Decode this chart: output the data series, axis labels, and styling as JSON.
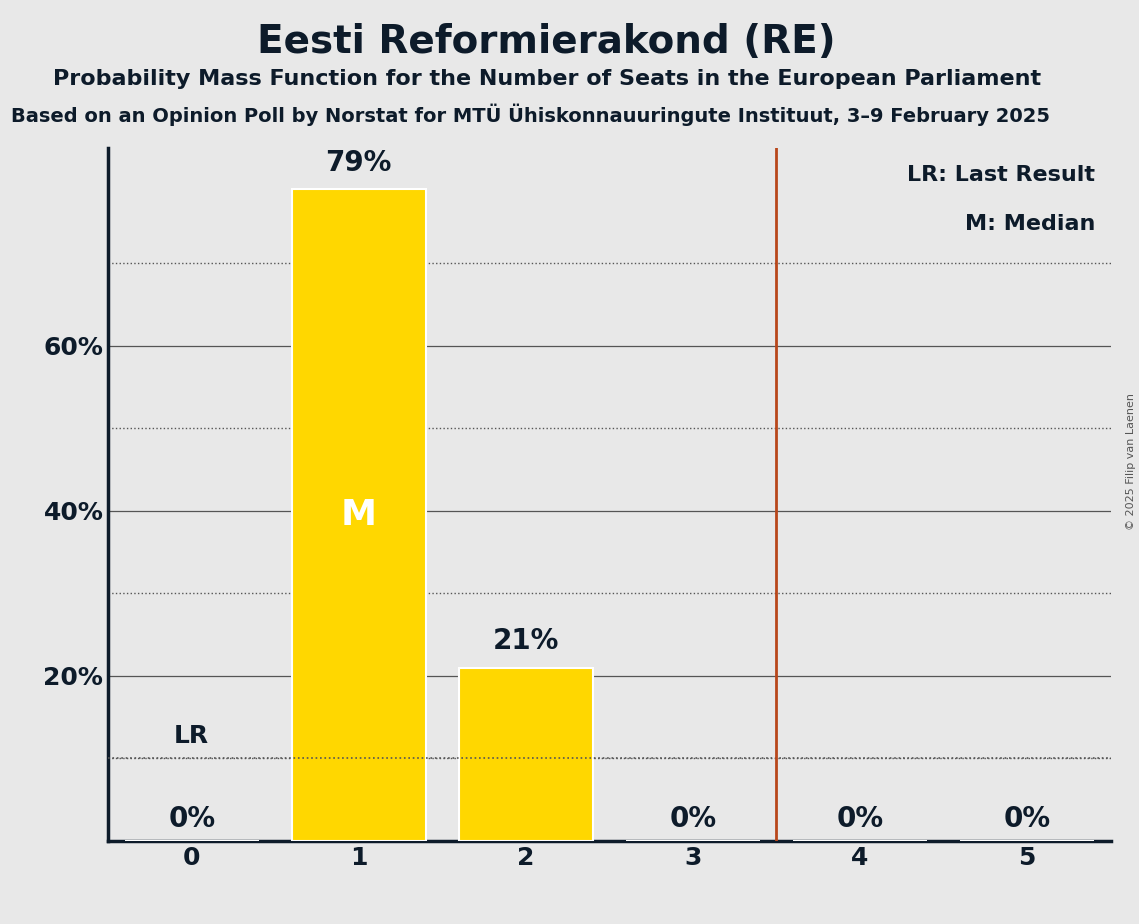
{
  "title": "Eesti Reformierakond (RE)",
  "subtitle": "Probability Mass Function for the Number of Seats in the European Parliament",
  "sub_subtitle": "Based on an Opinion Poll by Norstat for MTÜ Ühistkonnauuringute Instituut, 3–9 February 2025",
  "sub_subtitle_display": "Based on an Opinion Poll by Norstat for MTÜ Ühiskonnauuringute Instituut, 3–9 February 2025",
  "copyright": "© 2025 Filip van Laenen",
  "categories": [
    0,
    1,
    2,
    3,
    4,
    5
  ],
  "values": [
    0.0,
    0.79,
    0.21,
    0.0,
    0.0,
    0.0
  ],
  "bar_color": "#FFD700",
  "bar_edge_color": "white",
  "median": 1,
  "last_result": 3.5,
  "last_result_color": "#B8471B",
  "background_color": "#E8E8E8",
  "yticks_major": [
    0.2,
    0.4,
    0.6
  ],
  "yticks_minor": [
    0.1,
    0.3,
    0.5,
    0.7
  ],
  "ylabel_ticks": [
    0.2,
    0.4,
    0.6
  ],
  "ylabel_labels": [
    "20%",
    "40%",
    "60%"
  ],
  "lr_value": 0.1,
  "ylim_max": 0.84,
  "title_fontsize": 28,
  "subtitle_fontsize": 16,
  "sub_subtitle_fontsize": 14,
  "tick_fontsize": 18,
  "bar_label_fontsize": 20,
  "legend_fontsize": 16,
  "median_label_color": "white",
  "median_label_fontsize": 26,
  "axis_label_color": "#0d1b2a",
  "title_color": "#0d1b2a",
  "grid_major_color": "#555555",
  "grid_minor_color": "#555555",
  "lr_label_fontsize": 18
}
